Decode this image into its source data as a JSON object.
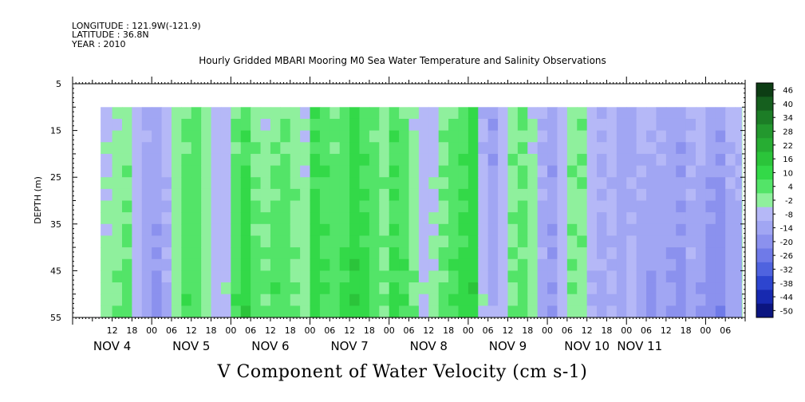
{
  "header": {
    "longitude": "LONGITUDE : 121.9W(-121.9)",
    "latitude": "LATITUDE : 36.8N",
    "year": "YEAR : 2010"
  },
  "chart_data": {
    "type": "heatmap",
    "title": "Hourly Gridded MBARI Mooring M0 Sea Water Temperature and Salinity Observations",
    "xlabel": "V Component of Water Velocity (cm s-1)",
    "ylabel": "DEPTH (m)",
    "y_axis": {
      "range": [
        5,
        55
      ],
      "inverted": true,
      "tick_labels": [
        "5",
        "15",
        "25",
        "35",
        "45",
        "55"
      ],
      "tick_values": [
        5,
        15,
        25,
        35,
        45,
        55
      ]
    },
    "x_axis": {
      "range_hours": [
        0,
        204
      ],
      "hour_tick_labels": [
        "12",
        "18",
        "00",
        "06",
        "12",
        "18",
        "00",
        "06",
        "12",
        "18",
        "00",
        "06",
        "12",
        "18",
        "00",
        "06",
        "12",
        "18",
        "00",
        "06",
        "12",
        "18",
        "00",
        "06",
        "12",
        "18",
        "00",
        "06",
        "12",
        "18",
        "00",
        "06"
      ],
      "hour_tick_values": [
        12,
        18,
        24,
        30,
        36,
        42,
        48,
        54,
        60,
        66,
        72,
        78,
        84,
        90,
        96,
        102,
        108,
        114,
        120,
        126,
        132,
        138,
        144,
        150,
        156,
        162,
        168,
        174,
        180,
        186,
        192,
        198
      ],
      "day_labels": [
        "NOV  4",
        "NOV  5",
        "NOV  6",
        "NOV  7",
        "NOV  8",
        "NOV  9",
        "NOV 10",
        "NOV 11"
      ],
      "day_label_hours": [
        12,
        36,
        60,
        84,
        108,
        132,
        156,
        172
      ]
    },
    "data_extent": {
      "depth": [
        10,
        55
      ],
      "hours": [
        8.5,
        203
      ]
    },
    "colorbar": {
      "labels": [
        "46",
        "40",
        "34",
        "28",
        "22",
        "16",
        "10",
        "4",
        "-2",
        "-8",
        "-14",
        "-20",
        "-26",
        "-32",
        "-38",
        "-44",
        "-50"
      ],
      "colors": [
        "#0d3d14",
        "#155f1e",
        "#1c7d26",
        "#23982e",
        "#27ad33",
        "#2bc43a",
        "#33d948",
        "#53e468",
        "#8ff09d",
        "#b5b8f7",
        "#a1a6f3",
        "#8b91ee",
        "#6f7ae8",
        "#4f63df",
        "#2d45cf",
        "#1729b0",
        "#0b1580"
      ]
    },
    "columns": {
      "hours": [
        8.5,
        12,
        15,
        18,
        21,
        24,
        27,
        30,
        33,
        36,
        39,
        42,
        45,
        48,
        51,
        54,
        57,
        60,
        63,
        66,
        69,
        72,
        75,
        78,
        81,
        84,
        87,
        90,
        93,
        96,
        99,
        102,
        105,
        108,
        111,
        114,
        117,
        120,
        123,
        126,
        129,
        132,
        135,
        138,
        141,
        144,
        147,
        150,
        153,
        156,
        159,
        162,
        165,
        168,
        171,
        174,
        177,
        180,
        183,
        186,
        189,
        192,
        195,
        198,
        201,
        203
      ],
      "v_upper": [
        -4,
        -2,
        2,
        -6,
        -9,
        -10,
        -6,
        0,
        4,
        7,
        2,
        -5,
        -7,
        4,
        8,
        2,
        -1,
        2,
        4,
        2,
        -2,
        10,
        8,
        4,
        5,
        12,
        8,
        5,
        2,
        8,
        5,
        -2,
        -6,
        -4,
        2,
        4,
        8,
        12,
        -8,
        -14,
        -6,
        2,
        4,
        -2,
        -8,
        -12,
        -6,
        2,
        4,
        -4,
        -8,
        -6,
        -10,
        -12,
        -4,
        -6,
        -8,
        -10,
        -12,
        -8,
        -6,
        -10,
        -12,
        -6,
        -4,
        0
      ],
      "v_lower": [
        2,
        4,
        6,
        -4,
        -12,
        -16,
        -10,
        2,
        10,
        6,
        2,
        -6,
        -2,
        10,
        16,
        8,
        6,
        10,
        8,
        4,
        2,
        14,
        10,
        8,
        12,
        16,
        12,
        8,
        4,
        12,
        10,
        4,
        -2,
        0,
        6,
        10,
        12,
        16,
        -2,
        -8,
        -4,
        4,
        6,
        2,
        -10,
        -14,
        -6,
        4,
        2,
        -8,
        -10,
        -8,
        -12,
        -4,
        -14,
        -16,
        -12,
        -14,
        -16,
        -10,
        -14,
        -18,
        -20,
        -12,
        -14,
        6
      ]
    }
  }
}
